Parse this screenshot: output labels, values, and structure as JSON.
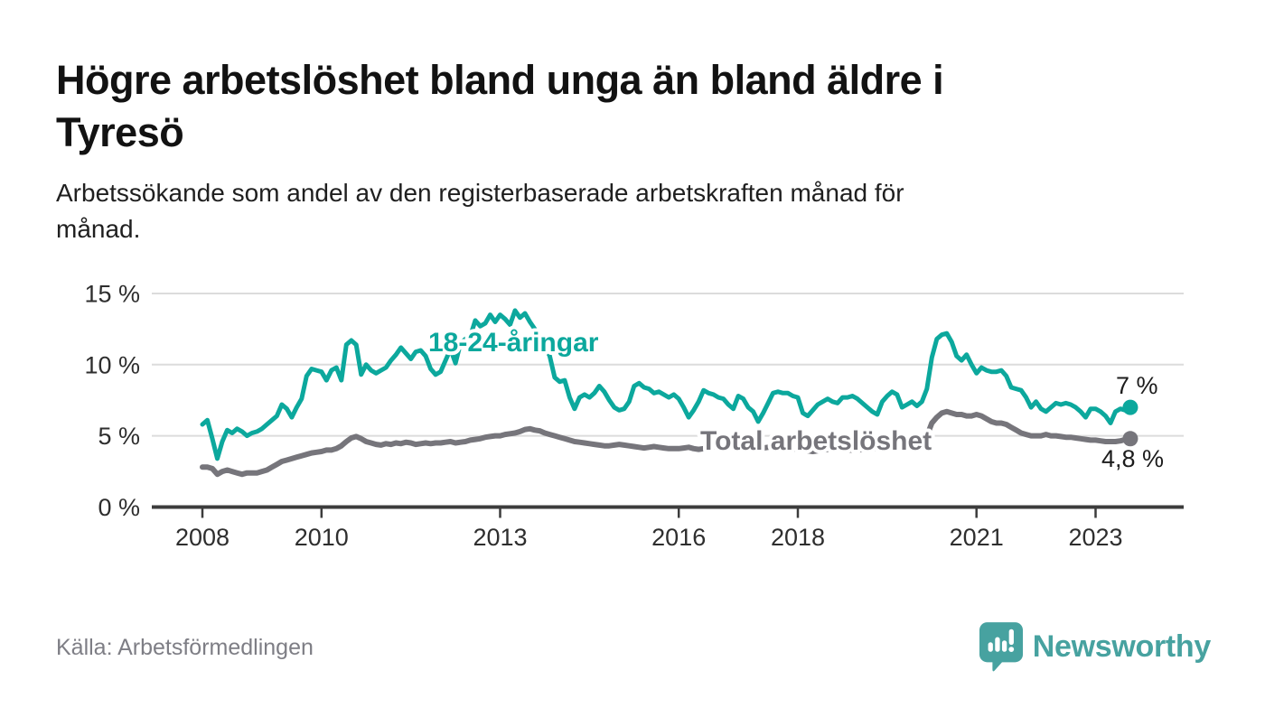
{
  "header": {
    "title_lines": [
      "Högre arbetslöshet bland unga än bland äldre i",
      "Tyresö"
    ],
    "subtitle_lines": [
      "Arbetssökande som andel av den registerbaserade arbetskraften månad för",
      "månad."
    ]
  },
  "footer": {
    "source": "Källa: Arbetsförmedlingen",
    "brand": "Newsworthy",
    "logo_icon": "newsworthy-speech-bubble-bar-chart-icon"
  },
  "colors": {
    "accent_teal": "#0ca89d",
    "series_gray": "#76757b",
    "grid": "#dcdcdc",
    "axis": "#3c3c3c",
    "tick_text": "#2e2e2e",
    "end_label_text": "#1c1c1c",
    "text_dark": "#121212",
    "text_gray": "#7e7e85",
    "brand_teal": "#47a2a0",
    "background": "#ffffff"
  },
  "chart_data": {
    "type": "line",
    "title": "Högre arbetslöshet bland unga än bland äldre i Tyresö",
    "subtitle": "Arbetssökande som andel av den registerbaserade arbetskraften månad för månad.",
    "source": "Källa: Arbetsförmedlingen",
    "unit": "%",
    "frequency": "monthly",
    "x_start": "2008-01",
    "x_end": "2023-08",
    "xlim": [
      2007.15,
      2024.48
    ],
    "ylim": [
      0,
      15.8
    ],
    "grid": "horizontal",
    "legend_position": "inline-labels",
    "y_ticks": [
      0,
      5,
      10,
      15
    ],
    "y_tick_labels": [
      "0 %",
      "5 %",
      "10 %",
      "15 %"
    ],
    "x_ticks": [
      2008,
      2010,
      2013,
      2016,
      2018,
      2021,
      2023
    ],
    "x_tick_labels": [
      "2008",
      "2010",
      "2013",
      "2016",
      "2018",
      "2021",
      "2023"
    ],
    "series": [
      {
        "name": "18-24-åringar",
        "color": "#0ca89d",
        "end_label": "7 %",
        "end_value": 7.0,
        "values": [
          5.8,
          6.1,
          4.8,
          3.4,
          4.6,
          5.4,
          5.2,
          5.5,
          5.3,
          5.0,
          5.2,
          5.3,
          5.5,
          5.8,
          6.1,
          6.4,
          7.2,
          6.9,
          6.3,
          7.0,
          7.6,
          9.2,
          9.7,
          9.6,
          9.5,
          8.9,
          9.6,
          9.8,
          8.9,
          11.4,
          11.7,
          11.4,
          9.3,
          10.0,
          9.6,
          9.4,
          9.6,
          9.8,
          10.3,
          10.7,
          11.2,
          10.8,
          10.4,
          10.9,
          11.0,
          10.6,
          9.7,
          9.3,
          9.5,
          10.3,
          11.1,
          10.1,
          11.5,
          11.8,
          12.0,
          13.1,
          12.7,
          12.9,
          13.5,
          13.0,
          13.5,
          13.2,
          12.8,
          13.8,
          13.3,
          13.6,
          13.0,
          12.5,
          12.0,
          11.3,
          10.6,
          9.1,
          8.8,
          8.9,
          7.7,
          6.9,
          7.7,
          7.9,
          7.7,
          8.0,
          8.5,
          8.1,
          7.5,
          7.0,
          6.8,
          6.9,
          7.4,
          8.5,
          8.7,
          8.4,
          8.3,
          8.0,
          8.1,
          7.9,
          7.7,
          7.9,
          7.6,
          7.0,
          6.3,
          6.8,
          7.4,
          8.2,
          8.0,
          7.9,
          7.7,
          7.6,
          7.2,
          6.9,
          7.8,
          7.6,
          7.0,
          6.7,
          6.0,
          6.6,
          7.3,
          8.0,
          8.1,
          8.0,
          8.0,
          7.8,
          7.7,
          6.6,
          6.4,
          6.8,
          7.2,
          7.4,
          7.6,
          7.4,
          7.3,
          7.7,
          7.7,
          7.8,
          7.6,
          7.3,
          7.0,
          6.7,
          6.5,
          7.4,
          7.8,
          8.1,
          7.9,
          7.0,
          7.2,
          7.4,
          7.1,
          7.4,
          8.3,
          10.5,
          11.8,
          12.1,
          12.2,
          11.6,
          10.6,
          10.3,
          10.7,
          10.0,
          9.4,
          9.8,
          9.6,
          9.5,
          9.5,
          9.6,
          9.2,
          8.4,
          8.3,
          8.2,
          7.7,
          7.0,
          7.4,
          6.9,
          6.7,
          7.0,
          7.3,
          7.2,
          7.3,
          7.2,
          7.0,
          6.7,
          6.3,
          6.9,
          6.9,
          6.7,
          6.4,
          5.9,
          6.7,
          6.9,
          6.8,
          7.0
        ]
      },
      {
        "name": "Total arbetslöshet",
        "color": "#76757b",
        "end_label": "4,8 %",
        "end_value": 4.8,
        "values": [
          2.8,
          2.8,
          2.7,
          2.3,
          2.5,
          2.6,
          2.5,
          2.4,
          2.3,
          2.4,
          2.4,
          2.4,
          2.5,
          2.6,
          2.8,
          3.0,
          3.2,
          3.3,
          3.4,
          3.5,
          3.6,
          3.7,
          3.8,
          3.85,
          3.9,
          4.0,
          4.0,
          4.1,
          4.3,
          4.6,
          4.85,
          4.95,
          4.8,
          4.6,
          4.5,
          4.4,
          4.35,
          4.45,
          4.4,
          4.5,
          4.45,
          4.55,
          4.5,
          4.4,
          4.45,
          4.5,
          4.45,
          4.5,
          4.5,
          4.55,
          4.6,
          4.5,
          4.55,
          4.6,
          4.7,
          4.75,
          4.8,
          4.9,
          4.95,
          5.0,
          5.0,
          5.1,
          5.15,
          5.2,
          5.3,
          5.45,
          5.5,
          5.4,
          5.35,
          5.2,
          5.1,
          5.0,
          4.9,
          4.8,
          4.7,
          4.6,
          4.55,
          4.5,
          4.45,
          4.4,
          4.35,
          4.3,
          4.3,
          4.35,
          4.4,
          4.35,
          4.3,
          4.25,
          4.2,
          4.15,
          4.2,
          4.25,
          4.2,
          4.15,
          4.1,
          4.1,
          4.1,
          4.15,
          4.2,
          4.1,
          4.05,
          4.1,
          4.2,
          4.25,
          4.2,
          4.1,
          4.15,
          4.2,
          4.2,
          4.15,
          4.1,
          4.05,
          4.1,
          4.15,
          4.2,
          4.25,
          4.2,
          4.15,
          4.1,
          4.1,
          4.05,
          4.0,
          3.95,
          3.9,
          3.95,
          4.0,
          4.05,
          4.1,
          4.05,
          4.0,
          4.0,
          4.0,
          4.0,
          4.05,
          4.1,
          4.1,
          4.15,
          4.2,
          4.25,
          4.3,
          4.3,
          4.25,
          4.3,
          4.35,
          4.5,
          4.6,
          5.0,
          5.9,
          6.3,
          6.6,
          6.7,
          6.6,
          6.5,
          6.5,
          6.4,
          6.4,
          6.5,
          6.4,
          6.2,
          6.0,
          5.9,
          5.9,
          5.8,
          5.6,
          5.4,
          5.2,
          5.1,
          5.0,
          5.0,
          5.0,
          5.1,
          5.0,
          5.0,
          4.95,
          4.9,
          4.9,
          4.85,
          4.8,
          4.75,
          4.7,
          4.7,
          4.65,
          4.6,
          4.6,
          4.6,
          4.65,
          4.75,
          4.8
        ]
      }
    ]
  }
}
